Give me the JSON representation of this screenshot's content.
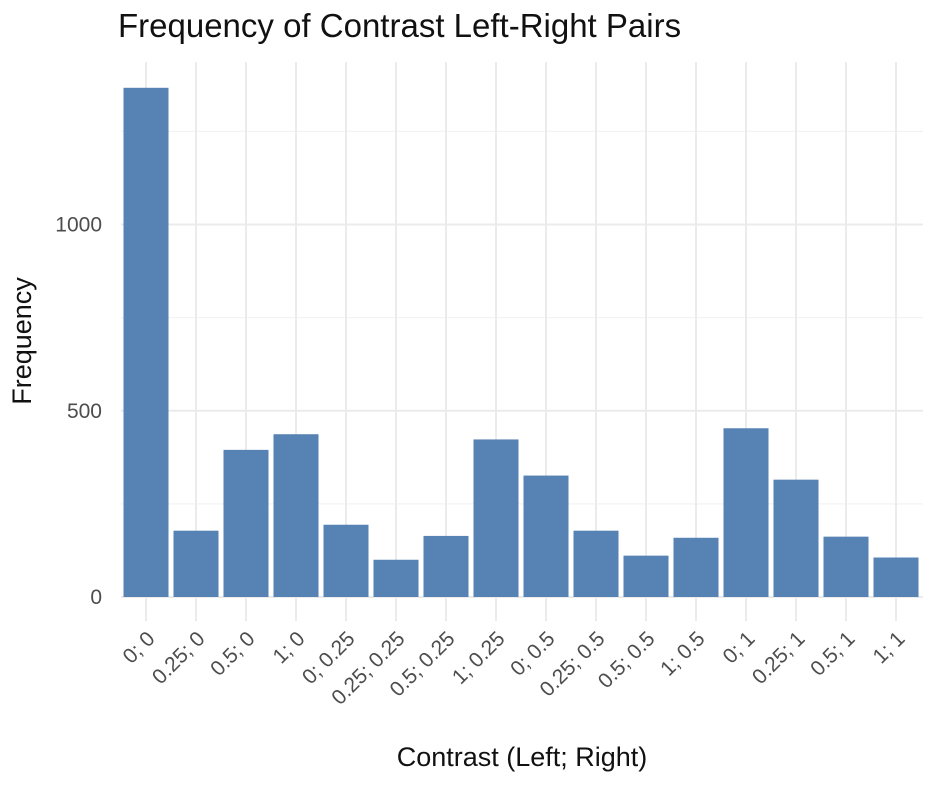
{
  "chart_data": {
    "type": "bar",
    "title": "Frequency of Contrast Left-Right Pairs",
    "xlabel": "Contrast (Left; Right)",
    "ylabel": "Frequency",
    "categories": [
      "0; 0",
      "0.25; 0",
      "0.5; 0",
      "1; 0",
      "0; 0.25",
      "0.25; 0.25",
      "0.5; 0.25",
      "1; 0.25",
      "0; 0.5",
      "0.25; 0.5",
      "0.5; 0.5",
      "1; 0.5",
      "0; 1",
      "0.25; 1",
      "0.5; 1",
      "1; 1"
    ],
    "values": [
      1367,
      178,
      395,
      437,
      194,
      100,
      164,
      423,
      326,
      178,
      111,
      159,
      453,
      315,
      162,
      106
    ],
    "ylim": [
      0,
      1367
    ],
    "yticks": [
      0,
      500,
      1000
    ],
    "ytick_labels": [
      "0",
      "500",
      "1000"
    ],
    "grid": true,
    "colors": {
      "bar": "#5682b4",
      "grid": "#ebebeb"
    }
  }
}
